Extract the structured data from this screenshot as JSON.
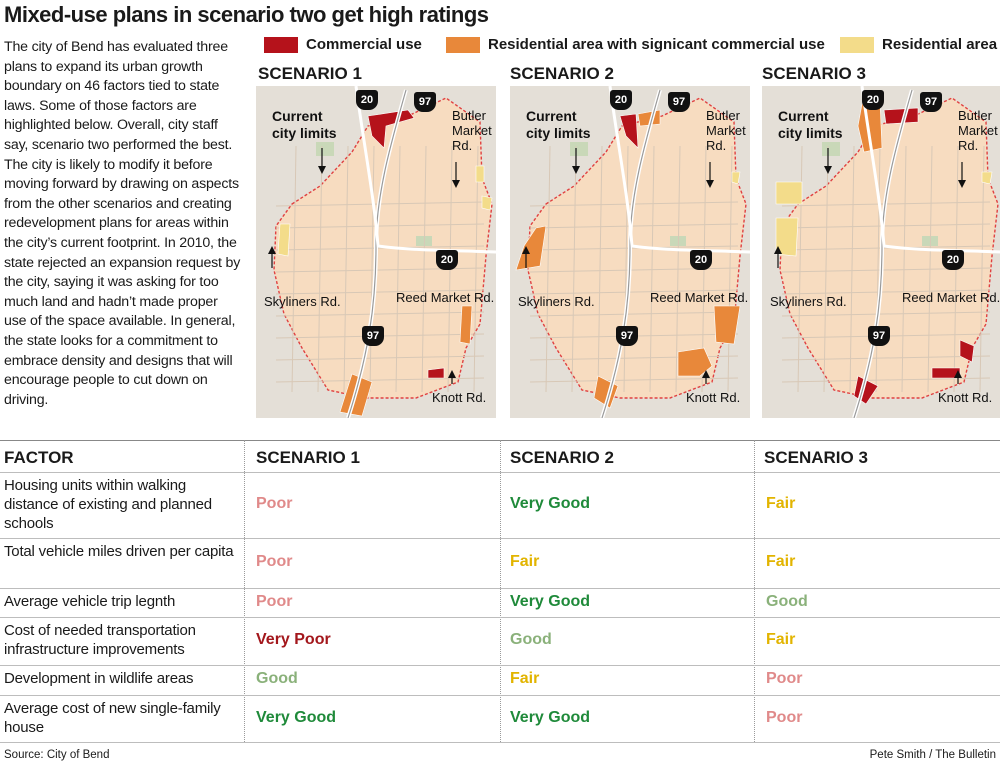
{
  "title": "Mixed-use plans in scenario two get high ratings",
  "intro": "The city of Bend has evaluated three plans to expand its urban growth boundary on 46 factors tied to state laws. Some of those factors are highlighted below. Overall, city staff say, scenario two performed the best. The city is likely to modify it before moving forward by drawing on aspects from the other scenarios and creating redevelopment plans for areas within the city’s current footprint. In 2010, the state rejected an expansion request by the city, saying it was asking for too much land and hadn’t made proper use of the space available. In general, the state looks for a commitment to embrace density and designs that will encourage people to cut down on driving.",
  "legend": [
    {
      "label": "Commercial use",
      "color": "#b5121b"
    },
    {
      "label": "Residential area with signicant commercial use",
      "color": "#e8883a"
    },
    {
      "label": "Residential area",
      "color": "#f3dc8a"
    }
  ],
  "maps": {
    "titles": [
      "SCENARIO 1",
      "SCENARIO 2",
      "SCENARIO 3"
    ],
    "labels": {
      "city_limits_1": "Current",
      "city_limits_2": "city limits",
      "butler_1": "Butler",
      "butler_2": "Market",
      "butler_3": "Rd.",
      "skyliners": "Skyliners Rd.",
      "reed": "Reed Market Rd.",
      "knott": "Knott Rd.",
      "hwy20": "20",
      "hwy97": "97"
    }
  },
  "table": {
    "headers": [
      "FACTOR",
      "SCENARIO 1",
      "SCENARIO 2",
      "SCENARIO 3"
    ],
    "rows": [
      {
        "factor": "Housing units within walking distance of existing and planned schools",
        "ratings": [
          "Poor",
          "Very Good",
          "Fair"
        ]
      },
      {
        "factor": "Total vehicle miles driven per capita",
        "ratings": [
          "Poor",
          "Fair",
          "Fair"
        ]
      },
      {
        "factor": "Average vehicle trip legnth",
        "ratings": [
          "Poor",
          "Very Good",
          "Good"
        ]
      },
      {
        "factor": "Cost of needed transportation infrastructure improvements",
        "ratings": [
          "Very Poor",
          "Good",
          "Fair"
        ]
      },
      {
        "factor": "Development in wildlife areas",
        "ratings": [
          "Good",
          "Fair",
          "Poor"
        ]
      },
      {
        "factor": "Average cost of new single-family house",
        "ratings": [
          "Very Good",
          "Very Good",
          "Poor"
        ]
      }
    ],
    "rating_colors": {
      "Very Poor": "#a3171c",
      "Poor": "#e08a8a",
      "Fair": "#e2b400",
      "Good": "#8ab17a",
      "Very Good": "#1f8a3a"
    }
  },
  "source": "Source: City of Bend",
  "credit": "Pete Smith / The Bulletin"
}
